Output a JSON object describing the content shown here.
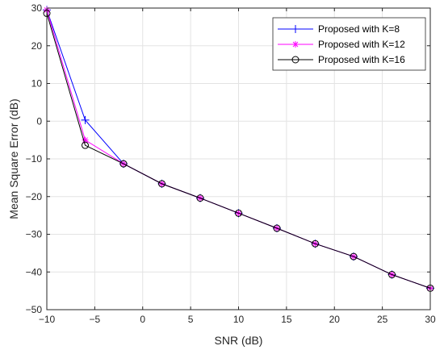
{
  "chart_data": {
    "type": "line",
    "title": "",
    "xlabel": "SNR (dB)",
    "ylabel": "Mean Square Error (dB)",
    "xlim": [
      -10,
      30
    ],
    "ylim": [
      -50,
      30
    ],
    "x_ticks": [
      -10,
      -5,
      0,
      5,
      10,
      15,
      20,
      25,
      30
    ],
    "y_ticks": [
      -50,
      -40,
      -30,
      -20,
      -10,
      0,
      10,
      20,
      30
    ],
    "x_tick_labels": [
      "−10",
      "−5",
      "0",
      "5",
      "10",
      "15",
      "20",
      "25",
      "30"
    ],
    "y_tick_labels": [
      "−50",
      "−40",
      "−30",
      "−20",
      "−10",
      "0",
      "10",
      "20",
      "30"
    ],
    "grid": true,
    "legend_position": "top-right",
    "x": [
      -10,
      -6,
      -2,
      2,
      6,
      10,
      14,
      18,
      22,
      26,
      30
    ],
    "series": [
      {
        "name": "Proposed with K=8",
        "color": "#0000ff",
        "marker": "plus",
        "values": [
          29.5,
          0.3,
          -11.3,
          -16.6,
          -20.4,
          -24.4,
          -28.4,
          -32.5,
          -35.9,
          -40.7,
          -44.3
        ]
      },
      {
        "name": "Proposed with K=12",
        "color": "#ff00ff",
        "marker": "asterisk",
        "values": [
          29.5,
          -5.0,
          -11.3,
          -16.6,
          -20.4,
          -24.4,
          -28.4,
          -32.5,
          -35.9,
          -40.7,
          -44.3
        ]
      },
      {
        "name": "Proposed with K=16",
        "color": "#000000",
        "marker": "circle",
        "values": [
          28.6,
          -6.4,
          -11.3,
          -16.6,
          -20.4,
          -24.4,
          -28.4,
          -32.5,
          -35.9,
          -40.7,
          -44.3
        ]
      }
    ]
  }
}
